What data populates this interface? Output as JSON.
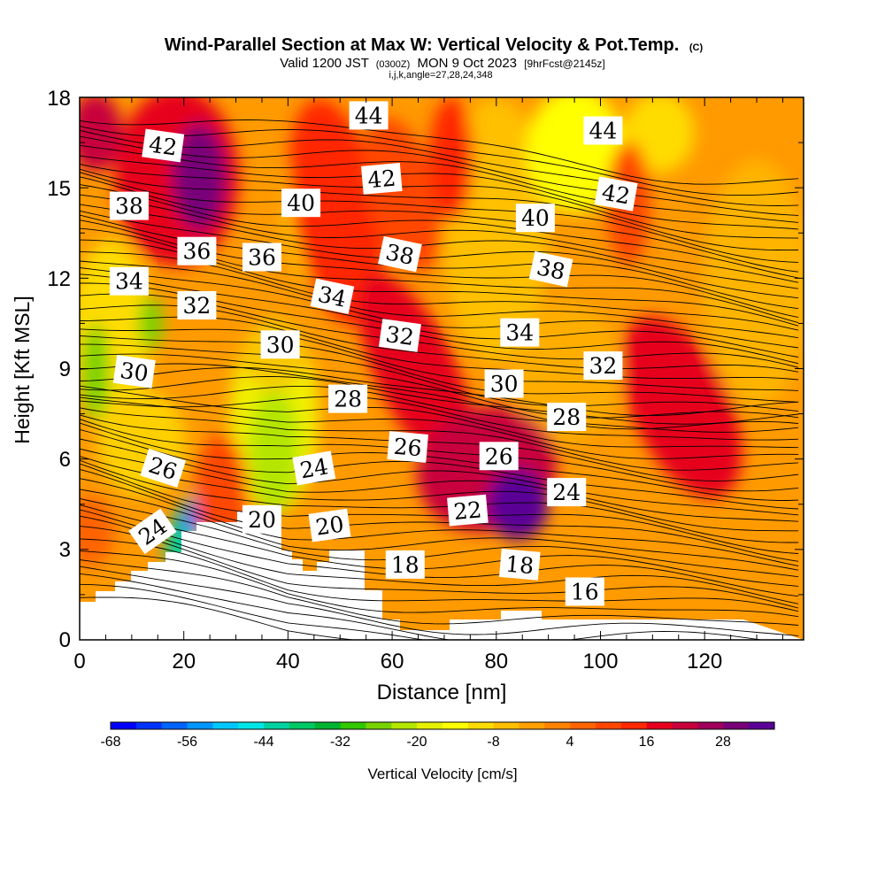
{
  "chart_data": {
    "type": "heatmap",
    "title": "Wind-Parallel Section at Max W: Vertical Velocity & Pot.Temp.",
    "title_unit": "(C)",
    "subtitle_parts": [
      "Valid 1200 JST",
      "(0300Z)",
      "MON 9 Oct 2023",
      "[9hrFcst@2145z]"
    ],
    "subtitle2": "i,j,k,angle=27,28,24,348",
    "xlabel": "Distance [nm]",
    "ylabel": "Height [Kft MSL]",
    "xlim": [
      0,
      139
    ],
    "ylim": [
      0,
      18
    ],
    "x_ticks": [
      "0",
      "20",
      "40",
      "60",
      "80",
      "100",
      "120"
    ],
    "y_ticks": [
      "0",
      "3",
      "6",
      "9",
      "12",
      "15",
      "18"
    ],
    "colorbar": {
      "label": "Vertical Velocity [cm/s]",
      "tick_labels": [
        "-68",
        "-56",
        "-44",
        "-32",
        "-20",
        "-8",
        "4",
        "16",
        "28"
      ],
      "colors": [
        "#0000ff",
        "#0032ff",
        "#0064ff",
        "#0096ff",
        "#00c8ff",
        "#00e6e6",
        "#00d2a0",
        "#00c864",
        "#00b432",
        "#32c800",
        "#78d200",
        "#b4e600",
        "#e6f000",
        "#ffff00",
        "#ffdc00",
        "#ffbe00",
        "#ffa000",
        "#ff8200",
        "#ff6400",
        "#ff4600",
        "#ff2800",
        "#e6001e",
        "#c8003c",
        "#a0005a",
        "#780078",
        "#5a0096"
      ]
    },
    "contour_labels": [
      {
        "text": "44",
        "x": 55.5,
        "y": 17.4,
        "angle": 0
      },
      {
        "text": "44",
        "x": 100.5,
        "y": 16.9,
        "angle": 0
      },
      {
        "text": "42",
        "x": 16,
        "y": 16.4,
        "angle": 8
      },
      {
        "text": "42",
        "x": 58,
        "y": 15.3,
        "angle": -5
      },
      {
        "text": "42",
        "x": 103,
        "y": 14.8,
        "angle": 10
      },
      {
        "text": "40",
        "x": 42.5,
        "y": 14.5,
        "angle": 0
      },
      {
        "text": "40",
        "x": 87.5,
        "y": 14.0,
        "angle": 0
      },
      {
        "text": "38",
        "x": 9.5,
        "y": 14.4,
        "angle": 0
      },
      {
        "text": "38",
        "x": 61.5,
        "y": 12.8,
        "angle": 12
      },
      {
        "text": "38",
        "x": 90.5,
        "y": 12.3,
        "angle": 12
      },
      {
        "text": "36",
        "x": 22.5,
        "y": 12.9,
        "angle": 0
      },
      {
        "text": "36",
        "x": 35,
        "y": 12.7,
        "angle": 0
      },
      {
        "text": "34",
        "x": 9.5,
        "y": 11.9,
        "angle": 0
      },
      {
        "text": "34",
        "x": 48.5,
        "y": 11.4,
        "angle": 12
      },
      {
        "text": "34",
        "x": 84.5,
        "y": 10.2,
        "angle": 0
      },
      {
        "text": "32",
        "x": 22.5,
        "y": 11.1,
        "angle": 0
      },
      {
        "text": "32",
        "x": 61.5,
        "y": 10.1,
        "angle": 8
      },
      {
        "text": "32",
        "x": 100.5,
        "y": 9.1,
        "angle": 0
      },
      {
        "text": "30",
        "x": 38.5,
        "y": 9.8,
        "angle": 0
      },
      {
        "text": "30",
        "x": 10.5,
        "y": 8.9,
        "angle": 8
      },
      {
        "text": "30",
        "x": 81.5,
        "y": 8.5,
        "angle": 0
      },
      {
        "text": "28",
        "x": 51.5,
        "y": 8.0,
        "angle": 0
      },
      {
        "text": "28",
        "x": 93.5,
        "y": 7.4,
        "angle": 0
      },
      {
        "text": "26",
        "x": 16,
        "y": 5.7,
        "angle": 18
      },
      {
        "text": "26",
        "x": 63,
        "y": 6.4,
        "angle": 5
      },
      {
        "text": "26",
        "x": 80.5,
        "y": 6.1,
        "angle": 0
      },
      {
        "text": "24",
        "x": 45,
        "y": 5.7,
        "angle": -10
      },
      {
        "text": "24",
        "x": 93.5,
        "y": 4.9,
        "angle": 0
      },
      {
        "text": "24",
        "x": 14,
        "y": 3.6,
        "angle": -35
      },
      {
        "text": "22",
        "x": 74.5,
        "y": 4.3,
        "angle": -5
      },
      {
        "text": "20",
        "x": 35,
        "y": 4.0,
        "angle": 0
      },
      {
        "text": "20",
        "x": 48,
        "y": 3.8,
        "angle": -8
      },
      {
        "text": "18",
        "x": 62.5,
        "y": 2.5,
        "angle": 0
      },
      {
        "text": "18",
        "x": 84.5,
        "y": 2.5,
        "angle": 5
      },
      {
        "text": "16",
        "x": 97,
        "y": 1.6,
        "angle": 0
      }
    ]
  }
}
